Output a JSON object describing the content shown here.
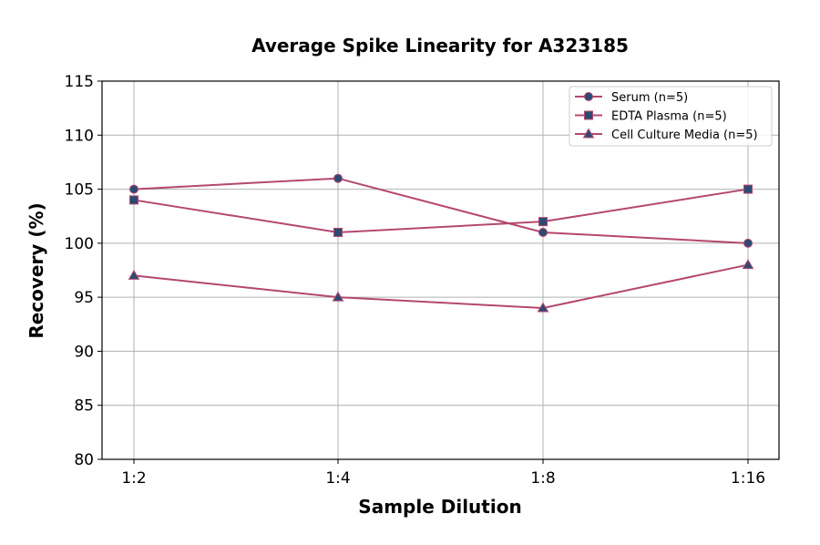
{
  "chart_data": {
    "type": "line",
    "title": "Average Spike Linearity for A323185",
    "xlabel": "Sample Dilution",
    "ylabel": "Recovery (%)",
    "categories": [
      "1:2",
      "1:4",
      "1:8",
      "1:16"
    ],
    "ylim": [
      80,
      115
    ],
    "yticks": [
      80,
      85,
      90,
      95,
      100,
      105,
      110,
      115
    ],
    "grid": true,
    "legend_position": "top-right",
    "line_color": "#b5476f",
    "marker_color": "#2d4a72",
    "series": [
      {
        "name": "Serum (n=5)",
        "marker": "circle",
        "values": [
          105,
          106,
          101,
          100
        ]
      },
      {
        "name": "EDTA Plasma (n=5)",
        "marker": "square",
        "values": [
          104,
          101,
          102,
          105
        ]
      },
      {
        "name": "Cell Culture Media (n=5)",
        "marker": "triangle",
        "values": [
          97,
          95,
          94,
          98
        ]
      }
    ]
  }
}
